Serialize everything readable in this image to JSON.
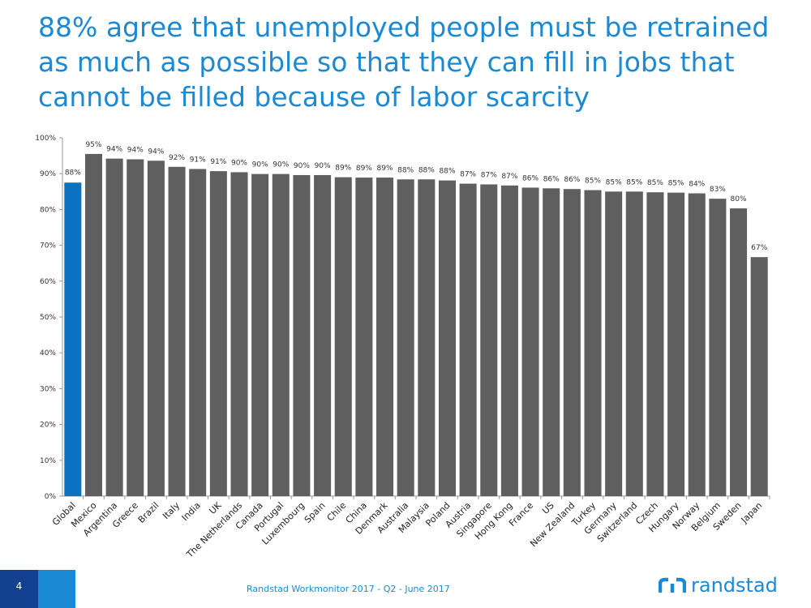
{
  "title": "88%  agree that unemployed people must be retrained as much as possible so that they can fill in jobs that cannot be filled because of labor scarcity",
  "footer": {
    "page_number": "4",
    "source": "Randstad Workmonitor 2017 - Q2 - June 2017",
    "logo_text": "randstad"
  },
  "colors": {
    "accent": "#1a8ad4",
    "highlight_bar": "#0a72c0",
    "bar": "#5f5f5f",
    "dark_blue": "#123f8f"
  },
  "chart_data": {
    "type": "bar",
    "categories": [
      "Global",
      "Mexico",
      "Argentina",
      "Greece",
      "Brazil",
      "Italy",
      "India",
      "UK",
      "The Netherlands",
      "Canada",
      "Portugal",
      "Luxembourg",
      "Spain",
      "Chile",
      "China",
      "Denmark",
      "Australia",
      "Malaysia",
      "Poland",
      "Austria",
      "Singapore",
      "Hong Kong",
      "France",
      "US",
      "New Zealand",
      "Turkey",
      "Germany",
      "Switzerland",
      "Czech",
      "Hungary",
      "Norway",
      "Belgium",
      "Sweden",
      "Japan"
    ],
    "values": [
      87.5,
      95.5,
      94.2,
      94.0,
      93.6,
      91.9,
      91.3,
      90.7,
      90.4,
      89.9,
      89.9,
      89.6,
      89.6,
      89.0,
      88.9,
      88.9,
      88.4,
      88.4,
      88.1,
      87.2,
      87.0,
      86.7,
      86.1,
      85.9,
      85.7,
      85.4,
      85.0,
      85.0,
      84.8,
      84.7,
      84.5,
      83.0,
      80.3,
      66.7
    ],
    "data_labels": [
      "88%",
      "95%",
      "94%",
      "94%",
      "94%",
      "92%",
      "91%",
      "91%",
      "90%",
      "90%",
      "90%",
      "90%",
      "90%",
      "89%",
      "89%",
      "89%",
      "88%",
      "88%",
      "88%",
      "87%",
      "87%",
      "87%",
      "86%",
      "86%",
      "86%",
      "85%",
      "85%",
      "85%",
      "85%",
      "85%",
      "84%",
      "83%",
      "80%",
      "67%"
    ],
    "highlight_index": 0,
    "y_ticks": [
      "0%",
      "10%",
      "20%",
      "30%",
      "40%",
      "50%",
      "60%",
      "70%",
      "80%",
      "90%",
      "100%"
    ],
    "ylim": [
      0,
      100
    ],
    "xlabel": "",
    "ylabel": "",
    "grid": false
  }
}
